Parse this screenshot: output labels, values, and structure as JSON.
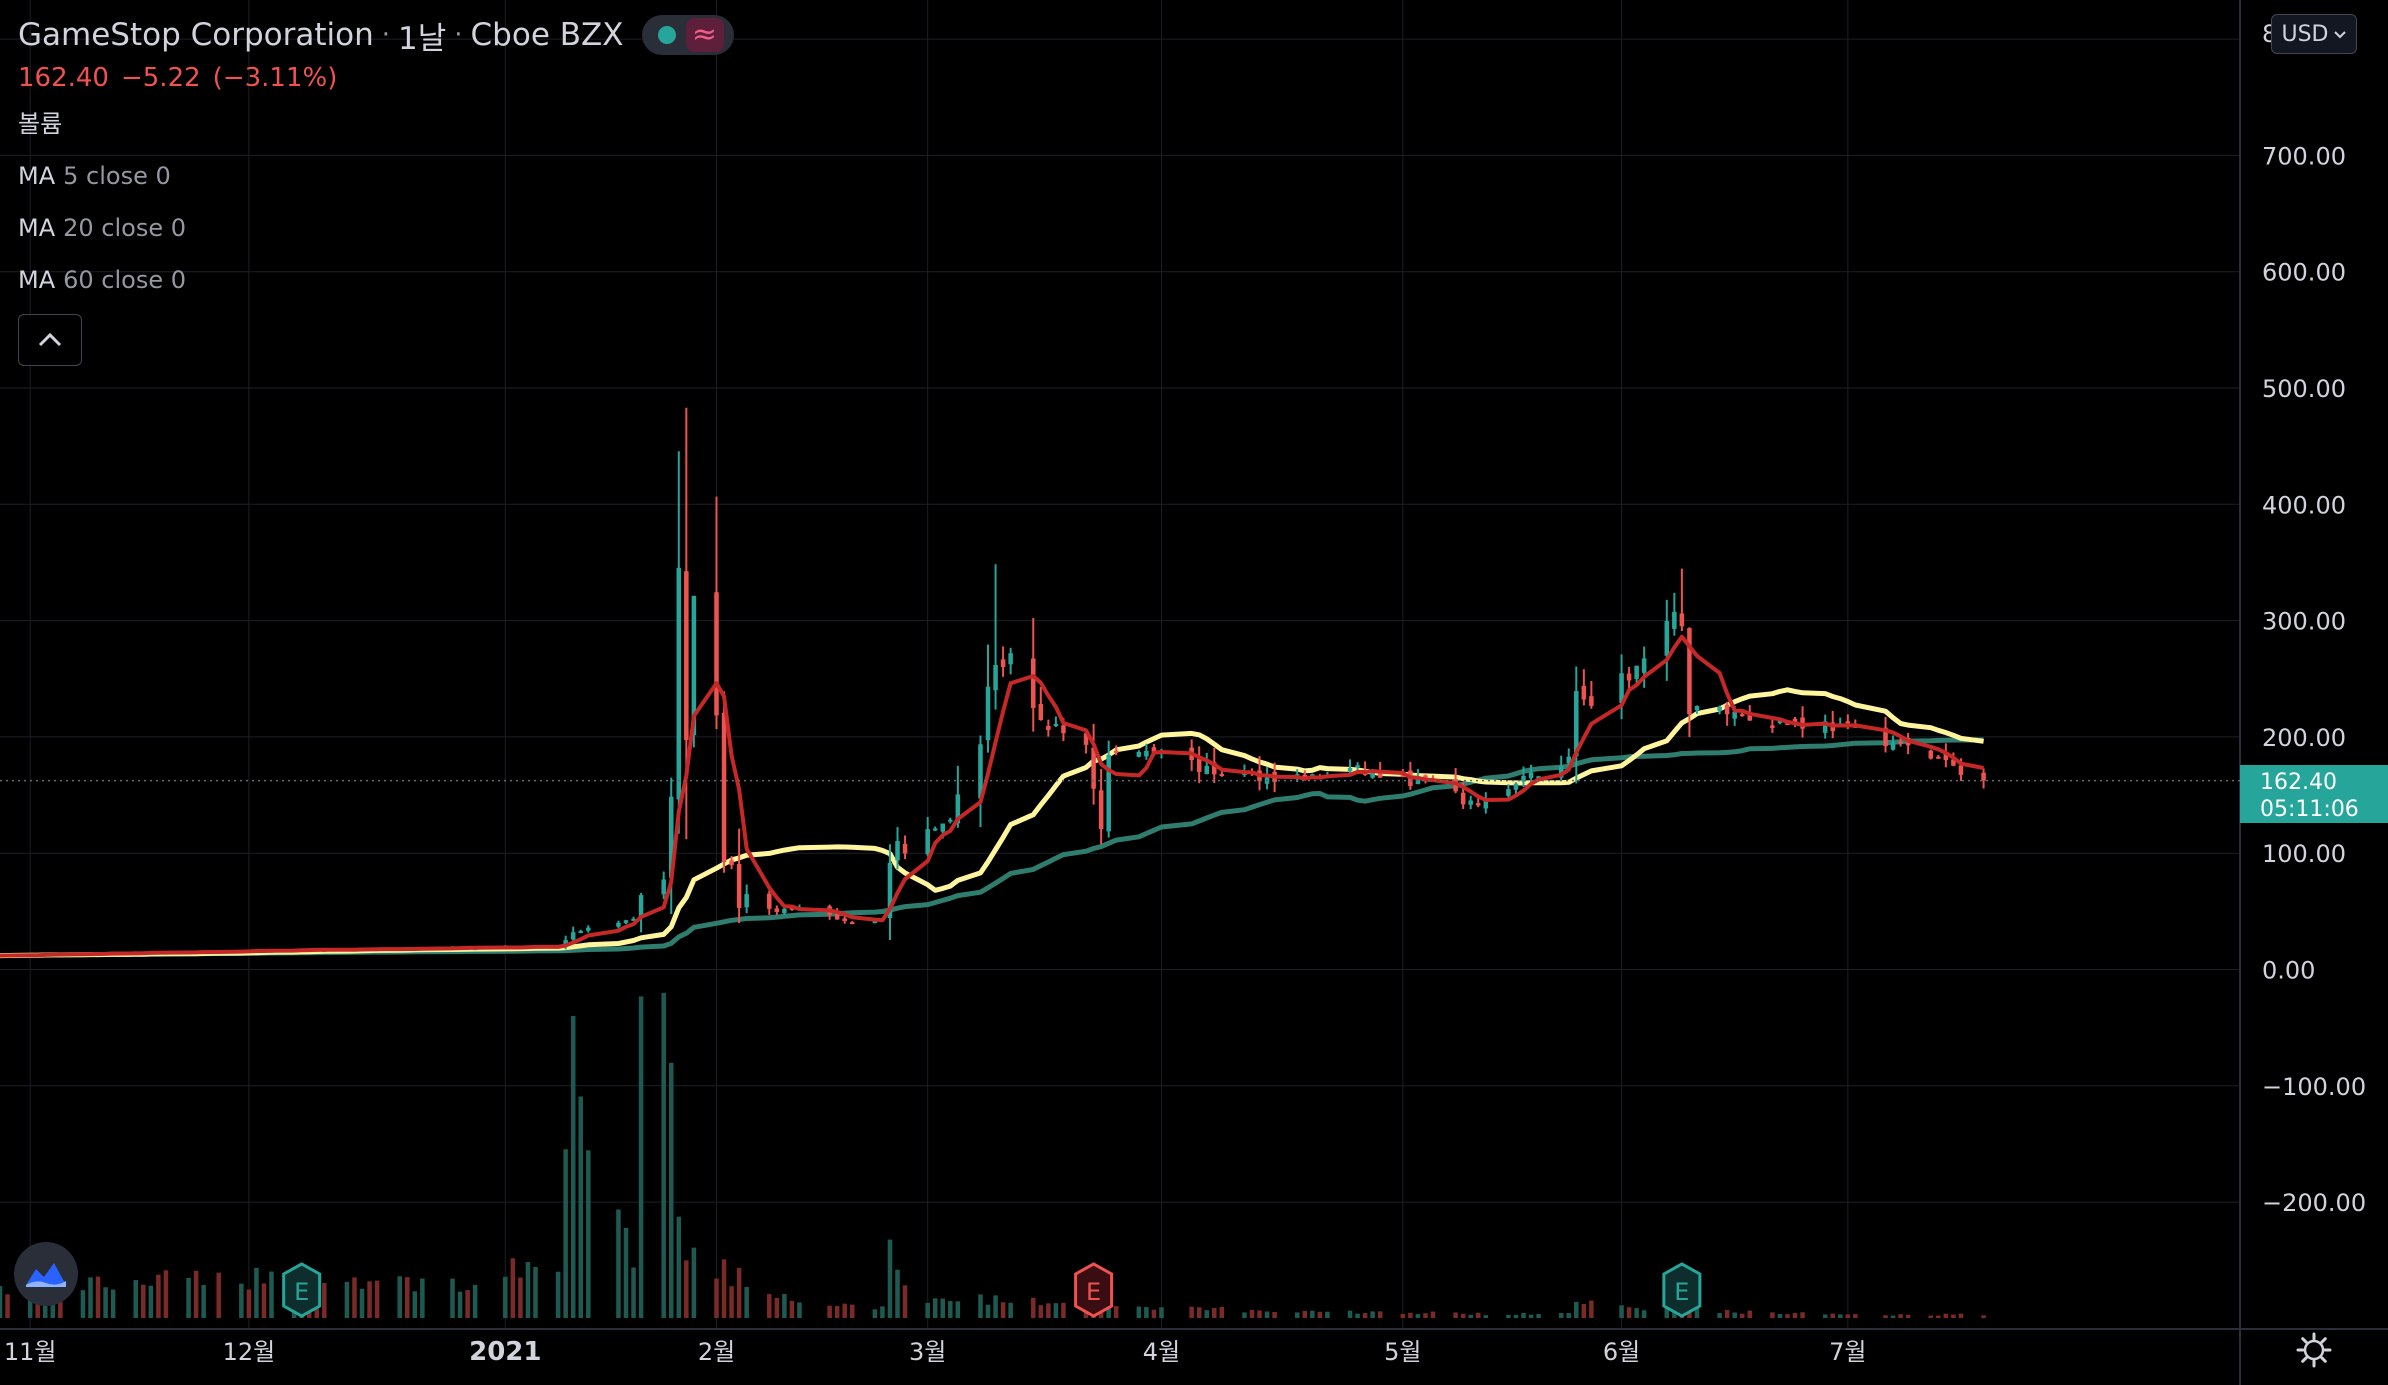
{
  "header": {
    "symbol_name": "GameStop Corporation",
    "interval": "1날",
    "exchange": "Cboe BZX",
    "separator": "·",
    "status_icon": "market-open-dot-icon",
    "wave_icon": "wave-icon"
  },
  "quote": {
    "last": "162.40",
    "change": "−5.22",
    "change_pct": "(−3.11%)",
    "color_down": "#ef5350",
    "color_up": "#26a69a"
  },
  "indicators": [
    {
      "name": "볼륨",
      "params": ""
    },
    {
      "name": "MA",
      "params": "5 close 0",
      "color": "#c62828"
    },
    {
      "name": "MA",
      "params": "20 close 0",
      "color": "#fff59d"
    },
    {
      "name": "MA",
      "params": "60 close 0",
      "color": "#2e7d6e"
    }
  ],
  "controls": {
    "currency": "USD",
    "collapse_icon": "chevron-up-icon",
    "settings_icon": "gear-icon",
    "logo_icon": "tradingview-logo-icon"
  },
  "price_axis": {
    "clipped_top_label": "8",
    "last_price_label": "162.40",
    "countdown": "05:11:06"
  },
  "chart_data": {
    "type": "candlestick",
    "grid": true,
    "yaxis": {
      "ticks": [
        "700.00",
        "600.00",
        "500.00",
        "400.00",
        "300.00",
        "200.00",
        "100.00",
        "0.00",
        "−100.00",
        "−200.00"
      ],
      "tick_values": [
        700,
        600,
        500,
        400,
        300,
        200,
        100,
        0,
        -100,
        -200
      ],
      "range": [
        -300,
        820
      ]
    },
    "xaxis": {
      "labels": [
        "11월",
        "12월",
        "2021",
        "2월",
        "3월",
        "4월",
        "5월",
        "6월",
        "7월"
      ],
      "label_dates": [
        "2020-11-02",
        "2020-12-01",
        "2021-01-04",
        "2021-02-01",
        "2021-03-01",
        "2021-04-01",
        "2021-05-03",
        "2021-06-01",
        "2021-07-01"
      ],
      "range": [
        "2020-10-29",
        "2021-08-22"
      ]
    },
    "earnings_markers": [
      {
        "date": "2020-12-08",
        "label": "E",
        "style": "past"
      },
      {
        "date": "2021-03-23",
        "label": "E",
        "style": "negative"
      },
      {
        "date": "2021-06-09",
        "label": "E",
        "style": "past"
      }
    ],
    "anchors": [
      [
        "2020-10-28",
        12.0,
        8
      ],
      [
        "2020-11-30",
        16.0,
        12
      ],
      [
        "2020-12-31",
        18.8,
        10
      ],
      [
        "2021-01-11",
        19.9,
        18
      ],
      [
        "2021-01-13",
        31.4,
        85
      ],
      [
        "2021-01-15",
        35.5,
        40
      ],
      [
        "2021-01-19",
        39.4,
        25
      ],
      [
        "2021-01-21",
        43.0,
        18
      ],
      [
        "2021-01-22",
        65.0,
        80
      ],
      [
        "2021-01-25",
        76.8,
        78
      ],
      [
        "2021-01-26",
        148.0,
        78
      ],
      [
        "2021-01-27",
        347.5,
        24
      ],
      [
        "2021-01-28",
        193.6,
        22
      ],
      [
        "2021-01-29",
        325.0,
        22
      ],
      [
        "2021-02-01",
        225.0,
        14
      ],
      [
        "2021-02-02",
        90.0,
        16
      ],
      [
        "2021-02-03",
        92.4,
        12
      ],
      [
        "2021-02-04",
        53.5,
        14
      ],
      [
        "2021-02-05",
        63.8,
        12
      ],
      [
        "2021-02-09",
        50.3,
        7
      ],
      [
        "2021-02-12",
        52.4,
        4
      ],
      [
        "2021-02-19",
        40.6,
        5
      ],
      [
        "2021-02-23",
        44.9,
        3
      ],
      [
        "2021-02-24",
        91.7,
        18
      ],
      [
        "2021-02-25",
        108.7,
        12
      ],
      [
        "2021-02-26",
        101.7,
        10
      ],
      [
        "2021-03-01",
        120.4,
        6
      ],
      [
        "2021-03-04",
        132.4,
        4
      ],
      [
        "2021-03-08",
        194.5,
        6
      ],
      [
        "2021-03-09",
        246.9,
        4
      ],
      [
        "2021-03-10",
        265.0,
        6
      ],
      [
        "2021-03-11",
        260.0,
        4
      ],
      [
        "2021-03-12",
        264.5,
        5
      ],
      [
        "2021-03-15",
        220.1,
        5
      ],
      [
        "2021-03-17",
        209.8,
        4
      ],
      [
        "2021-03-22",
        194.5,
        5
      ],
      [
        "2021-03-24",
        120.3,
        8
      ],
      [
        "2021-03-25",
        183.8,
        4
      ],
      [
        "2021-04-01",
        191.5,
        3
      ],
      [
        "2021-04-07",
        170.3,
        3
      ],
      [
        "2021-04-14",
        166.5,
        2
      ],
      [
        "2021-04-21",
        165.0,
        2
      ],
      [
        "2021-04-26",
        172.0,
        1.8
      ],
      [
        "2021-05-03",
        163.0,
        1.5
      ],
      [
        "2021-05-07",
        160.1,
        1.5
      ],
      [
        "2021-05-12",
        141.2,
        1.2
      ],
      [
        "2021-05-17",
        154.7,
        1.2
      ],
      [
        "2021-05-21",
        170.0,
        1.5
      ],
      [
        "2021-05-25",
        180.6,
        1.8
      ],
      [
        "2021-05-26",
        242.6,
        5
      ],
      [
        "2021-05-28",
        220.4,
        4
      ],
      [
        "2021-06-01",
        248.4,
        3
      ],
      [
        "2021-06-03",
        258.2,
        2.5
      ],
      [
        "2021-06-08",
        300.0,
        6
      ],
      [
        "2021-06-09",
        302.6,
        4
      ],
      [
        "2021-06-10",
        222.0,
        7
      ],
      [
        "2021-06-14",
        224.0,
        2
      ],
      [
        "2021-06-21",
        213.0,
        1.5
      ],
      [
        "2021-06-28",
        211.0,
        1.2
      ],
      [
        "2021-07-06",
        198.0,
        1.0
      ],
      [
        "2021-07-09",
        190.0,
        1.0
      ],
      [
        "2021-07-14",
        178.0,
        1.0
      ],
      [
        "2021-07-16",
        167.6,
        1.2
      ],
      [
        "2021-07-19",
        162.4,
        1.1
      ]
    ]
  }
}
